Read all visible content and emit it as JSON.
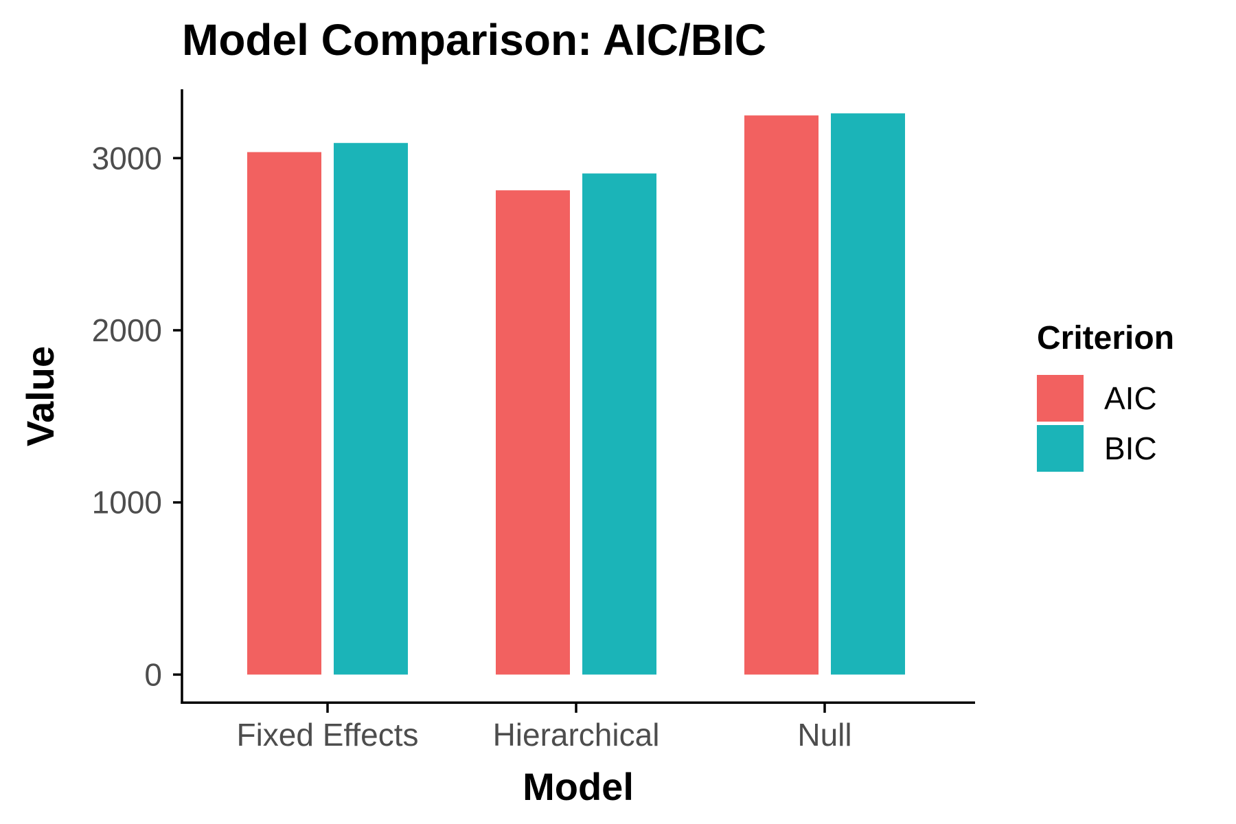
{
  "chart_data": {
    "type": "bar",
    "title": "Model Comparison: AIC/BIC",
    "xlabel": "Model",
    "ylabel": "Value",
    "categories": [
      "Fixed Effects",
      "Hierarchical",
      "Null"
    ],
    "series": [
      {
        "name": "AIC",
        "color": "#F26160",
        "values": [
          3035,
          2813,
          3248
        ]
      },
      {
        "name": "BIC",
        "color": "#1BB4B8",
        "values": [
          3088,
          2911,
          3260
        ]
      }
    ],
    "yticks": [
      0,
      1000,
      2000,
      3000
    ],
    "ytick_labels": [
      "0",
      "1000",
      "2000",
      "3000"
    ],
    "ylim": [
      -170,
      3400
    ],
    "grid": false,
    "legend": {
      "title": "Criterion",
      "position": "right"
    }
  }
}
